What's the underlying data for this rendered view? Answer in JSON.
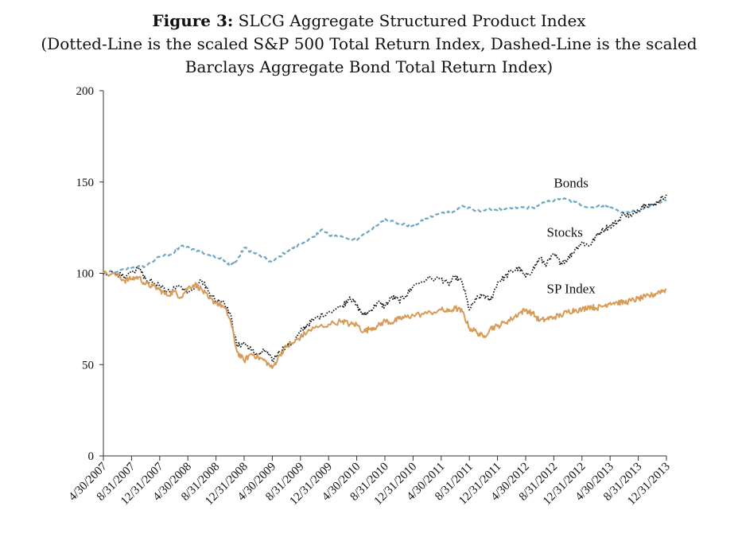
{
  "figure": {
    "label": "Figure 3:",
    "title": "SLCG Aggregate Structured Product Index",
    "subtitle_line1": "(Dotted-Line is the scaled S&P 500 Total Return Index, Dashed-Line is the scaled",
    "subtitle_line2": "Barclays Aggregate Bond Total Return Index)"
  },
  "colors": {
    "bonds": "#6fa6c4",
    "stocks": "#111111",
    "sp_index": "#d89b57",
    "axis": "#333333"
  },
  "chart_data": {
    "type": "line",
    "title": "Figure 3: SLCG Aggregate Structured Product Index",
    "xlabel": "",
    "ylabel": "",
    "ylim": [
      0,
      200
    ],
    "yticks": [
      0,
      50,
      100,
      150,
      200
    ],
    "grid": false,
    "x_range": [
      0,
      80
    ],
    "x_ticks": [
      {
        "x": 0,
        "label": "4/30/2007"
      },
      {
        "x": 4,
        "label": "8/31/2007"
      },
      {
        "x": 8,
        "label": "12/31/2007"
      },
      {
        "x": 12,
        "label": "4/30/2008"
      },
      {
        "x": 16,
        "label": "8/31/2008"
      },
      {
        "x": 20,
        "label": "12/31/2008"
      },
      {
        "x": 24,
        "label": "4/30/2009"
      },
      {
        "x": 28,
        "label": "8/31/2009"
      },
      {
        "x": 32,
        "label": "12/31/2009"
      },
      {
        "x": 36,
        "label": "4/30/2010"
      },
      {
        "x": 40,
        "label": "8/31/2010"
      },
      {
        "x": 44,
        "label": "12/31/2010"
      },
      {
        "x": 48,
        "label": "4/30/2011"
      },
      {
        "x": 52,
        "label": "8/31/2011"
      },
      {
        "x": 56,
        "label": "12/31/2011"
      },
      {
        "x": 60,
        "label": "4/30/2012"
      },
      {
        "x": 64,
        "label": "8/31/2012"
      },
      {
        "x": 68,
        "label": "12/31/2012"
      },
      {
        "x": 72,
        "label": "4/30/2013"
      },
      {
        "x": 76,
        "label": "8/31/2013"
      },
      {
        "x": 80,
        "label": "12/31/2013"
      }
    ],
    "series": [
      {
        "name": "Bonds",
        "style": "dashed",
        "color": "#6fa6c4",
        "label_at": [
          64,
          147
        ],
        "points": [
          [
            0,
            100
          ],
          [
            2,
            101
          ],
          [
            4,
            103
          ],
          [
            6,
            104
          ],
          [
            8,
            109
          ],
          [
            10,
            111
          ],
          [
            11,
            115
          ],
          [
            13,
            113
          ],
          [
            15,
            110
          ],
          [
            17,
            108
          ],
          [
            18,
            104
          ],
          [
            19,
            107
          ],
          [
            20,
            114
          ],
          [
            22,
            110
          ],
          [
            24,
            106
          ],
          [
            26,
            112
          ],
          [
            28,
            116
          ],
          [
            30,
            120
          ],
          [
            31,
            124
          ],
          [
            32,
            121
          ],
          [
            34,
            120
          ],
          [
            36,
            118
          ],
          [
            38,
            124
          ],
          [
            40,
            130
          ],
          [
            42,
            127
          ],
          [
            44,
            126
          ],
          [
            46,
            130
          ],
          [
            48,
            133
          ],
          [
            50,
            134
          ],
          [
            51,
            137
          ],
          [
            53,
            134
          ],
          [
            55,
            135
          ],
          [
            57,
            135
          ],
          [
            59,
            136
          ],
          [
            61,
            136
          ],
          [
            63,
            139
          ],
          [
            65,
            141
          ],
          [
            67,
            139
          ],
          [
            69,
            136
          ],
          [
            71,
            137
          ],
          [
            72,
            136
          ],
          [
            74,
            133
          ],
          [
            76,
            134
          ],
          [
            78,
            137
          ],
          [
            80,
            140
          ]
        ]
      },
      {
        "name": "Stocks",
        "style": "dotted",
        "color": "#111111",
        "label_at": [
          63,
          120
        ],
        "points": [
          [
            0,
            100
          ],
          [
            2,
            100
          ],
          [
            3,
            97
          ],
          [
            5,
            103
          ],
          [
            6,
            97
          ],
          [
            8,
            93
          ],
          [
            9,
            90
          ],
          [
            11,
            93
          ],
          [
            12,
            90
          ],
          [
            14,
            96
          ],
          [
            15,
            90
          ],
          [
            16,
            85
          ],
          [
            17,
            85
          ],
          [
            18,
            78
          ],
          [
            19,
            60
          ],
          [
            20,
            62
          ],
          [
            21,
            58
          ],
          [
            22,
            55
          ],
          [
            23,
            58
          ],
          [
            24,
            52
          ],
          [
            25,
            57
          ],
          [
            26,
            60
          ],
          [
            27,
            62
          ],
          [
            28,
            68
          ],
          [
            29,
            72
          ],
          [
            30,
            75
          ],
          [
            32,
            79
          ],
          [
            34,
            82
          ],
          [
            35,
            87
          ],
          [
            36,
            82
          ],
          [
            37,
            77
          ],
          [
            38,
            80
          ],
          [
            39,
            84
          ],
          [
            40,
            82
          ],
          [
            41,
            87
          ],
          [
            42,
            85
          ],
          [
            43,
            88
          ],
          [
            44,
            93
          ],
          [
            46,
            97
          ],
          [
            48,
            97
          ],
          [
            49,
            94
          ],
          [
            50,
            98
          ],
          [
            51,
            95
          ],
          [
            52,
            80
          ],
          [
            53,
            86
          ],
          [
            54,
            88
          ],
          [
            55,
            85
          ],
          [
            56,
            95
          ],
          [
            57,
            98
          ],
          [
            58,
            101
          ],
          [
            59,
            103
          ],
          [
            60,
            98
          ],
          [
            61,
            102
          ],
          [
            62,
            108
          ],
          [
            63,
            105
          ],
          [
            64,
            110
          ],
          [
            65,
            106
          ],
          [
            66,
            108
          ],
          [
            67,
            113
          ],
          [
            68,
            117
          ],
          [
            69,
            115
          ],
          [
            70,
            120
          ],
          [
            71,
            124
          ],
          [
            72,
            126
          ],
          [
            73,
            128
          ],
          [
            74,
            133
          ],
          [
            75,
            131
          ],
          [
            76,
            135
          ],
          [
            77,
            138
          ],
          [
            78,
            137
          ],
          [
            79,
            140
          ],
          [
            80,
            143
          ]
        ]
      },
      {
        "name": "SP Index",
        "style": "solid",
        "color": "#d89b57",
        "label_at": [
          63,
          89
        ],
        "points": [
          [
            0,
            100
          ],
          [
            2,
            99
          ],
          [
            3,
            96
          ],
          [
            4,
            97
          ],
          [
            5,
            98
          ],
          [
            6,
            94
          ],
          [
            7,
            93
          ],
          [
            8,
            91
          ],
          [
            9,
            88
          ],
          [
            10,
            90
          ],
          [
            11,
            87
          ],
          [
            12,
            92
          ],
          [
            13,
            94
          ],
          [
            14,
            91
          ],
          [
            15,
            86
          ],
          [
            16,
            84
          ],
          [
            17,
            82
          ],
          [
            18,
            75
          ],
          [
            19,
            57
          ],
          [
            20,
            52
          ],
          [
            21,
            56
          ],
          [
            22,
            54
          ],
          [
            23,
            52
          ],
          [
            24,
            48
          ],
          [
            25,
            55
          ],
          [
            26,
            60
          ],
          [
            27,
            62
          ],
          [
            28,
            65
          ],
          [
            29,
            68
          ],
          [
            30,
            70
          ],
          [
            32,
            72
          ],
          [
            34,
            74
          ],
          [
            35,
            72
          ],
          [
            36,
            72
          ],
          [
            37,
            68
          ],
          [
            38,
            70
          ],
          [
            39,
            71
          ],
          [
            40,
            74
          ],
          [
            41,
            73
          ],
          [
            42,
            75
          ],
          [
            43,
            76
          ],
          [
            44,
            77
          ],
          [
            46,
            78
          ],
          [
            48,
            80
          ],
          [
            49,
            79
          ],
          [
            50,
            81
          ],
          [
            51,
            79
          ],
          [
            52,
            70
          ],
          [
            53,
            68
          ],
          [
            54,
            65
          ],
          [
            55,
            70
          ],
          [
            56,
            71
          ],
          [
            57,
            73
          ],
          [
            58,
            75
          ],
          [
            59,
            78
          ],
          [
            60,
            80
          ],
          [
            61,
            78
          ],
          [
            62,
            74
          ],
          [
            63,
            75
          ],
          [
            64,
            76
          ],
          [
            65,
            77
          ],
          [
            66,
            79
          ],
          [
            67,
            80
          ],
          [
            68,
            80
          ],
          [
            69,
            82
          ],
          [
            70,
            81
          ],
          [
            71,
            82
          ],
          [
            72,
            84
          ],
          [
            73,
            84
          ],
          [
            74,
            84
          ],
          [
            75,
            85
          ],
          [
            76,
            86
          ],
          [
            77,
            87
          ],
          [
            78,
            88
          ],
          [
            79,
            90
          ],
          [
            80,
            91
          ]
        ]
      }
    ]
  }
}
